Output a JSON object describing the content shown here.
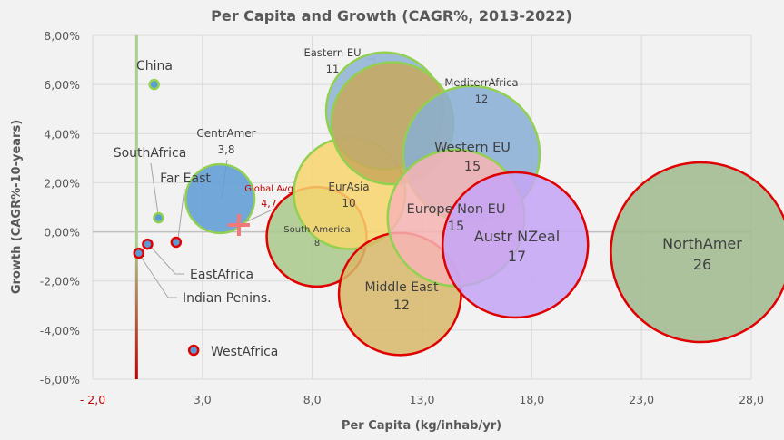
{
  "chart_data": {
    "type": "bubble",
    "title": "Per Capita and Growth (CAGR%, 2013-2022)",
    "xlabel": "Per Capita (kg/inhab/yr)",
    "ylabel": "Growth (CAGR%-10-years)",
    "xlim": [
      -2.0,
      28.0
    ],
    "ylim": [
      -6.0,
      8.0
    ],
    "x_ticks": [
      "- 2,0",
      "3,0",
      "8,0",
      "13,0",
      "18,0",
      "23,0",
      "28,0"
    ],
    "x_tick_values": [
      -2,
      3,
      8,
      13,
      18,
      23,
      28
    ],
    "y_ticks": [
      "8,00%",
      "6,00%",
      "4,00%",
      "2,00%",
      "0,00%",
      "-2,00%",
      "-4,00%",
      "-6,00%"
    ],
    "y_tick_values": [
      8,
      6,
      4,
      2,
      0,
      -2,
      -4,
      -6
    ],
    "grid": true,
    "reference_line": {
      "x": 0,
      "color_top": "#a9d18e",
      "color_bottom": "#c00000"
    },
    "colors": {
      "blue": "#5b9bd5",
      "green_border": "#92d050",
      "red_border": "#e00000",
      "title": "#595959",
      "global_avg": "#f4777a"
    },
    "points": [
      {
        "name": "China",
        "label": "China",
        "value_label": "",
        "x": 0.8,
        "y": 6.0,
        "size": 0.5,
        "fill": "#5b9bd5",
        "border": "#92d050"
      },
      {
        "name": "SouthAfrica",
        "label": "SouthAfrica",
        "value_label": "",
        "x": 1.0,
        "y": 0.57,
        "size": 0.6,
        "fill": "#5b9bd5",
        "border": "#92d050"
      },
      {
        "name": "Far East",
        "label": "Far East",
        "value_label": "",
        "x": 1.8,
        "y": -0.42,
        "size": 0.6,
        "fill": "#5b9bd5",
        "border": "#e00000"
      },
      {
        "name": "EastAfrica",
        "label": "EastAfrica",
        "value_label": "",
        "x": 0.5,
        "y": -0.5,
        "size": 0.6,
        "fill": "#5b9bd5",
        "border": "#e00000"
      },
      {
        "name": "Indian Penins.",
        "label": "Indian Penins.",
        "value_label": "",
        "x": 0.1,
        "y": -0.87,
        "size": 0.6,
        "fill": "#5b9bd5",
        "border": "#e00000"
      },
      {
        "name": "WestAfrica",
        "label": "WestAfrica",
        "value_label": "",
        "x": 2.6,
        "y": -4.82,
        "size": 0.6,
        "fill": "#5b9bd5",
        "border": "#e00000"
      },
      {
        "name": "CentrAmer",
        "label": "CentrAmer",
        "value_label": "3,8",
        "x": 3.8,
        "y": 1.35,
        "size": 3.8,
        "fill": "#5b9bd5",
        "border": "#92d050"
      },
      {
        "name": "South America",
        "label": "South America",
        "value_label": "8",
        "x": 8.2,
        "y": -0.2,
        "size": 8,
        "fill": "#a9c98a",
        "border": "#e00000"
      },
      {
        "name": "EurAsia",
        "label": "EurAsia",
        "value_label": "10",
        "x": 9.7,
        "y": 1.57,
        "size": 10,
        "fill": "#f7d56d",
        "border": "#92d050"
      },
      {
        "name": "Eastern EU",
        "label": "Eastern EU",
        "value_label": "11",
        "x": 11.3,
        "y": 4.93,
        "size": 11,
        "fill": "#8db3d6",
        "border": "#92d050"
      },
      {
        "name": "MediterrAfrica",
        "label": "MediterrAfrica",
        "value_label": "12",
        "x": 11.65,
        "y": 4.42,
        "size": 12,
        "fill": "#c9a85a",
        "border": "#92d050"
      },
      {
        "name": "Middle East",
        "label": "Middle East",
        "value_label": "12",
        "x": 12.0,
        "y": -2.53,
        "size": 12,
        "fill": "#d8b768",
        "border": "#e00000"
      },
      {
        "name": "Western EU",
        "label": "Western EU",
        "value_label": "15",
        "x": 15.25,
        "y": 3.16,
        "size": 15,
        "fill": "#87aed4",
        "border": "#92d050"
      },
      {
        "name": "Europe Non EU",
        "label": "Europe Non EU",
        "value_label": "15",
        "x": 14.55,
        "y": 0.57,
        "size": 15,
        "fill": "#f7b4b4",
        "border": "#92d050"
      },
      {
        "name": "Austr NZeal",
        "label": "Austr NZeal",
        "value_label": "17",
        "x": 17.25,
        "y": -0.53,
        "size": 17,
        "fill": "#c4a5f7",
        "border": "#e00000"
      },
      {
        "name": "NorthAmer",
        "label": "NorthAmer",
        "value_label": "26",
        "x": 25.7,
        "y": -0.83,
        "size": 26,
        "fill": "#9fba8e",
        "border": "#e00000"
      }
    ],
    "global_avg": {
      "label": "Global Avg",
      "value_label": "4,7",
      "x": 4.66,
      "y": 0.28
    }
  }
}
